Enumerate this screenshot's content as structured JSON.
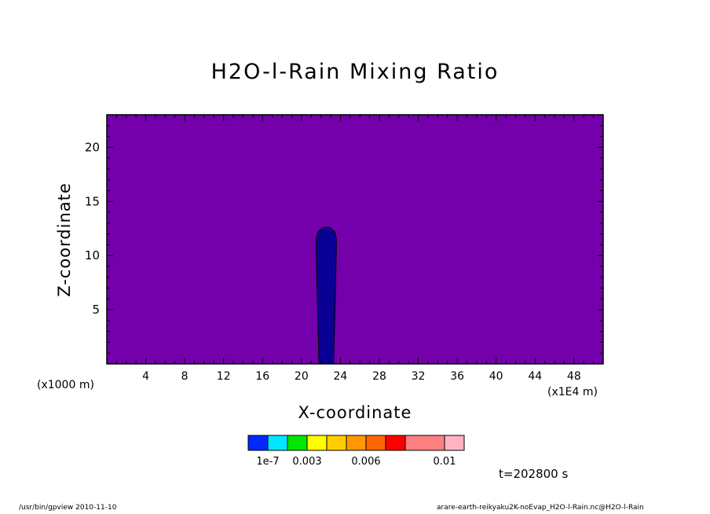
{
  "chart_data": {
    "type": "heatmap",
    "title": "H2O-l-Rain Mixing Ratio",
    "xlabel": "X-coordinate",
    "ylabel": "Z-coordinate",
    "x_units": "(x1E4 m)",
    "z_units": "(x1000 m)",
    "xlim": [
      0,
      51
    ],
    "ylim": [
      0,
      23
    ],
    "x_ticks": [
      4,
      8,
      12,
      16,
      20,
      24,
      28,
      32,
      36,
      40,
      44,
      48
    ],
    "y_ticks": [
      5,
      10,
      15,
      20
    ],
    "background_color": "#7300aa",
    "regions": [
      {
        "color": "#0a0095",
        "outline": [
          [
            21.8,
            0
          ],
          [
            21.6,
            7
          ],
          [
            21.5,
            11.5
          ],
          [
            21.7,
            12.2
          ],
          [
            22.3,
            12.6
          ],
          [
            22.9,
            12.6
          ],
          [
            23.4,
            12.2
          ],
          [
            23.6,
            11.5
          ],
          [
            23.5,
            7
          ],
          [
            23.3,
            0
          ]
        ]
      }
    ],
    "colorbar": {
      "colors": [
        "#0028ff",
        "#00e6ff",
        "#00e600",
        "#ffff00",
        "#ffcc00",
        "#ff9900",
        "#ff6600",
        "#ff0000",
        "#ff8080",
        "#ffb3c3"
      ],
      "labels": [
        "1e-7",
        "0.003",
        "0.006",
        "0.01"
      ]
    }
  },
  "time_label": "t=202800 s",
  "footer": {
    "left": "/usr/bin/gpview  2010-11-10",
    "right": "arare-earth-reikyaku2K-noEvap_H2O-l-Rain.nc@H2O-l-Rain"
  }
}
